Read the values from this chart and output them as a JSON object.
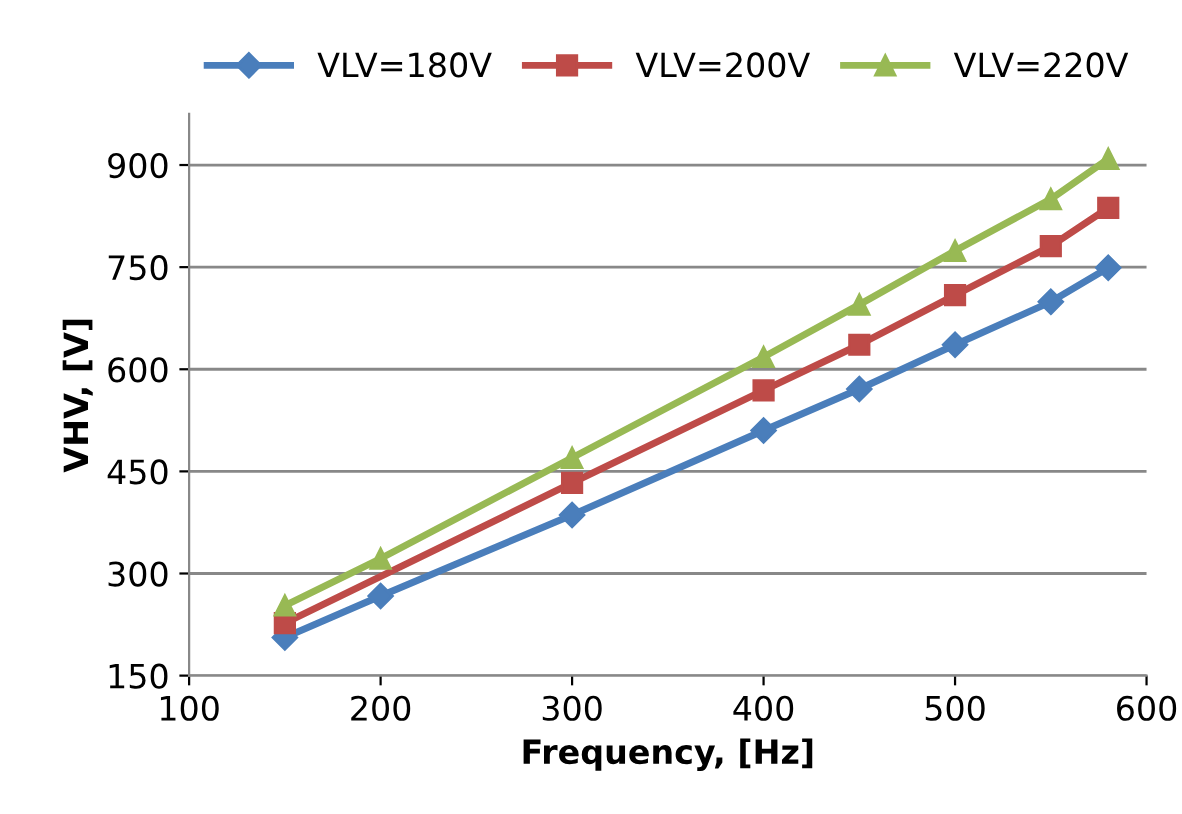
{
  "chart_data": {
    "type": "line",
    "xlabel": "Frequency, [Hz]",
    "ylabel": "VHV, [V]",
    "xlim": [
      100,
      600
    ],
    "xticks": [
      100,
      200,
      300,
      400,
      500,
      600
    ],
    "ylim": [
      150,
      975
    ],
    "yticks": [
      150,
      300,
      450,
      600,
      750,
      900
    ],
    "grid": "y",
    "legend": "top",
    "series": [
      {
        "name": "VLV=180V",
        "color": "#4a7ebb",
        "marker": "diamond",
        "x": [
          150,
          200,
          300,
          400,
          450,
          500,
          550,
          580
        ],
        "values": [
          206,
          267,
          386,
          510,
          571,
          636,
          699,
          749
        ]
      },
      {
        "name": "VLV=200V",
        "color": "#be4b48",
        "marker": "square",
        "x": [
          150,
          300,
          400,
          450,
          500,
          550,
          580
        ],
        "values": [
          227,
          433,
          569,
          636,
          709,
          781,
          837
        ]
      },
      {
        "name": "VLV=220V",
        "color": "#98b954",
        "marker": "triangle",
        "x": [
          150,
          200,
          300,
          400,
          450,
          500,
          550,
          580
        ],
        "values": [
          253,
          322,
          470,
          618,
          695,
          774,
          850,
          909
        ]
      }
    ]
  }
}
